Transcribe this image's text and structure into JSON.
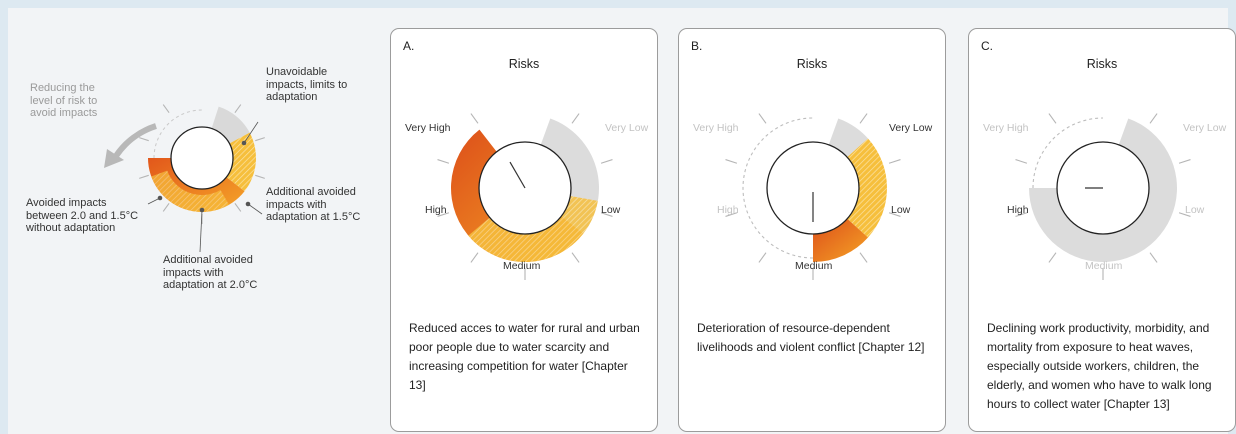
{
  "legend": {
    "reducing": "Reducing the level of risk to avoid impacts",
    "unavoidable": "Unavoidable impacts, limits to adaptation",
    "additional_15": "Additional avoided impacts with adaptation at 1.5°C",
    "avoided_20_15": "Avoided impacts between 2.0 and 1.5°C without adaptation",
    "additional_20": "Additional avoided impacts with adaptation at 2.0°C"
  },
  "panels": [
    {
      "letter": "A.",
      "title": "Risks",
      "levels": {
        "very_high": "Very High",
        "very_low": "Very Low",
        "high": "High",
        "low": "Low",
        "medium": "Medium"
      },
      "description": "Reduced acces to water for rural and urban poor people due to water scarcity and increasing competition for water [Chapter 13]"
    },
    {
      "letter": "B.",
      "title": "Risks",
      "levels": {
        "very_high": "Very High",
        "very_low": "Very Low",
        "high": "High",
        "low": "Low",
        "medium": "Medium"
      },
      "description": "Deterioration of resource-dependent livelihoods and violent conflict [Chapter 12]"
    },
    {
      "letter": "C.",
      "title": "Risks",
      "levels": {
        "very_high": "Very High",
        "very_low": "Very Low",
        "high": "High",
        "low": "Low",
        "medium": "Medium"
      },
      "description": "Declining work productivity, morbidity, and mortality from exposure to heat waves, especially outside workers, children, the elderly, and women who have to walk long hours to collect water [Chapter 13]"
    }
  ],
  "colors": {
    "dark_orange": "#e0541c",
    "orange": "#f2a326",
    "light_orange": "#f6bf3c",
    "grey_band": "#d9d9d9",
    "frame": "#9c9c9c"
  }
}
